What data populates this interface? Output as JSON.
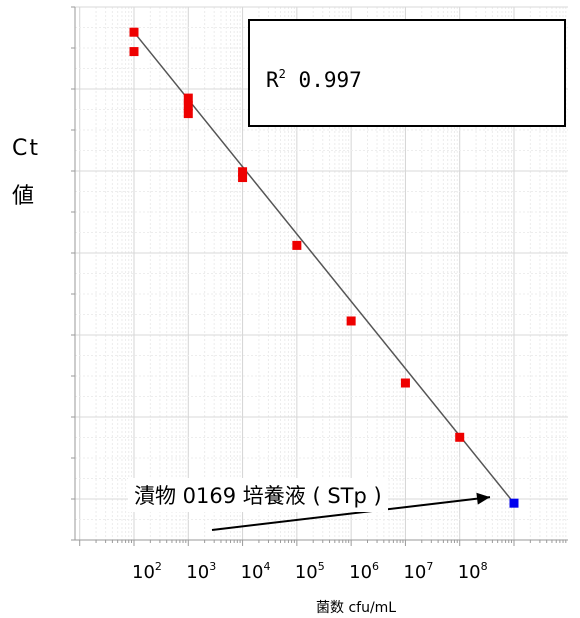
{
  "chart_data": {
    "type": "scatter",
    "title": "",
    "ylabel_line1": "Ct",
    "ylabel_line2": "値",
    "xlabel": "菌数 cfu/mL",
    "x_scale": "log",
    "xlim": [
      10,
      10000000000
    ],
    "x_tick_labels": [
      {
        "base": "10",
        "exp": "2",
        "value": 100
      },
      {
        "base": "10",
        "exp": "3",
        "value": 1000
      },
      {
        "base": "10",
        "exp": "4",
        "value": 10000
      },
      {
        "base": "10",
        "exp": "5",
        "value": 100000
      },
      {
        "base": "10",
        "exp": "6",
        "value": 1000000
      },
      {
        "base": "10",
        "exp": "7",
        "value": 10000000
      },
      {
        "base": "10",
        "exp": "8",
        "value": 100000000
      }
    ],
    "y_tick_labels_shown": false,
    "grid": true,
    "r2_label": "R",
    "r2_exp": "2",
    "r2_value": "0.997",
    "series": [
      {
        "marker_color": "#ee0000",
        "points": [
          {
            "x": 100,
            "y": 40.2
          },
          {
            "x": 100,
            "y": 39.2
          },
          {
            "x": 1000,
            "y": 36.8
          },
          {
            "x": 1000,
            "y": 36.4
          },
          {
            "x": 1000,
            "y": 36.0
          },
          {
            "x": 10000,
            "y": 33.0
          },
          {
            "x": 10000,
            "y": 32.7
          },
          {
            "x": 100000,
            "y": 29.2
          },
          {
            "x": 1000000,
            "y": 25.3
          },
          {
            "x": 10000000,
            "y": 22.1
          },
          {
            "x": 100000000,
            "y": 19.3
          }
        ]
      },
      {
        "marker_color": "#0000ee",
        "points": [
          {
            "x": 1000000000,
            "y": 15.9
          }
        ]
      }
    ],
    "fit_line": {
      "x": [
        100,
        1000000000
      ],
      "y": [
        40.2,
        15.9
      ],
      "color": "#555555"
    },
    "annotation": {
      "text": "漬物 0169 培養液 ( STp )",
      "arrow_to": {
        "x": 1000000000,
        "y": 15.9
      }
    }
  }
}
